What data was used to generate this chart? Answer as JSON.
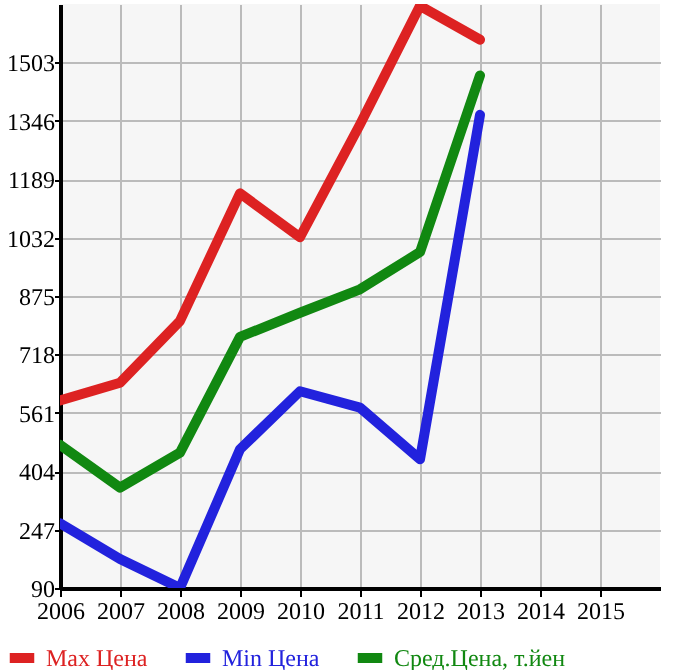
{
  "chart_data": {
    "type": "line",
    "x": [
      2006,
      2007,
      2008,
      2009,
      2010,
      2011,
      2012,
      2013
    ],
    "series": [
      {
        "name": "Max Цена",
        "color": "#dd2222",
        "values": [
          594,
          642,
          808,
          1151,
          1033,
          1336,
          1655,
          1564
        ]
      },
      {
        "name": "Min Цена",
        "color": "#2222dd",
        "values": [
          264,
          168,
          90,
          463,
          619,
          575,
          436,
          1362
        ]
      },
      {
        "name": "Сред.Цена, т.йен",
        "color": "#118811",
        "values": [
          475,
          360,
          454,
          765,
          830,
          893,
          993,
          1468
        ]
      }
    ],
    "xlim": [
      2006,
      2016
    ],
    "xticks": [
      2006,
      2007,
      2008,
      2009,
      2010,
      2011,
      2012,
      2013,
      2014,
      2015
    ],
    "ylim": [
      90,
      1660
    ],
    "yticks": [
      90,
      247,
      404,
      561,
      718,
      875,
      1032,
      1189,
      1346,
      1503
    ],
    "grid": true,
    "legend": "bottom",
    "marker": "none",
    "line_style": "solid"
  }
}
